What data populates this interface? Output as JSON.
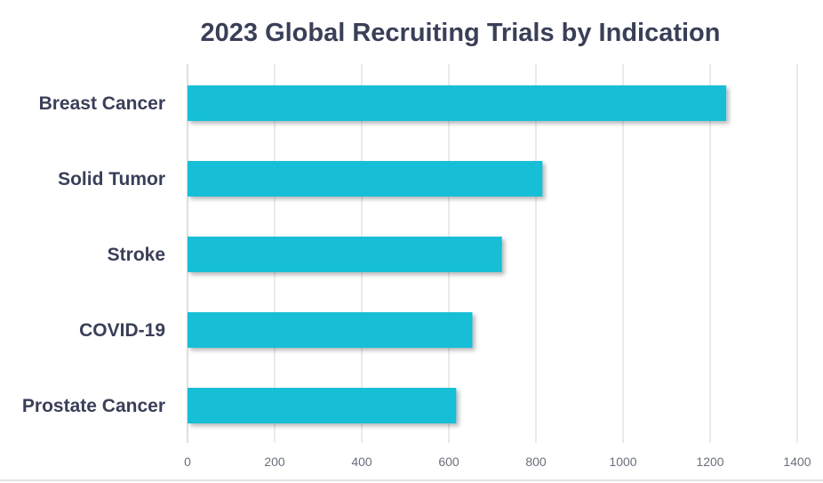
{
  "chart_data": {
    "type": "bar",
    "orientation": "horizontal",
    "title": "2023 Global Recruiting Trials by Indication",
    "xlabel": "",
    "ylabel": "",
    "categories": [
      "Breast Cancer",
      "Solid Tumor",
      "Stroke",
      "COVID-19",
      "Prostate Cancer"
    ],
    "values": [
      1237,
      815,
      722,
      654,
      617
    ],
    "xlim": [
      0,
      1400
    ],
    "xticks": [
      0,
      200,
      400,
      600,
      800,
      1000,
      1200,
      1400
    ],
    "grid": true,
    "legend": "none",
    "bar_color": "#17bfd6"
  }
}
